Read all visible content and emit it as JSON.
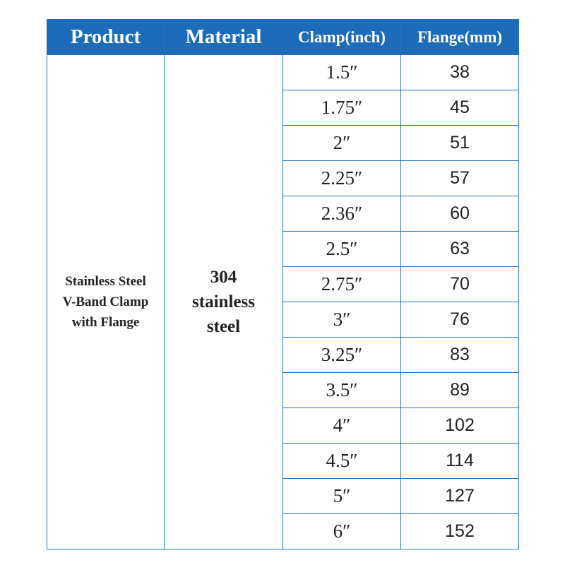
{
  "table": {
    "header": [
      "Product",
      "Material",
      "Clamp(inch)",
      "Flange(mm)"
    ],
    "product": [
      "Stainless Steel",
      "V-Band Clamp",
      "with Flange"
    ],
    "material": [
      "304",
      "stainless",
      "steel"
    ],
    "rows": [
      [
        "1.5″",
        38
      ],
      [
        "1.75″",
        45
      ],
      [
        "2″",
        51
      ],
      [
        "2.25″",
        57
      ],
      [
        "2.36″",
        60
      ],
      [
        "2.5″",
        63
      ],
      [
        "2.75″",
        70
      ],
      [
        "3″",
        76
      ],
      [
        "3.25″",
        83
      ],
      [
        "3.5″",
        89
      ],
      [
        "4″",
        102
      ],
      [
        "4.5″",
        114
      ],
      [
        "5″",
        127
      ],
      [
        "6″",
        152
      ]
    ]
  }
}
